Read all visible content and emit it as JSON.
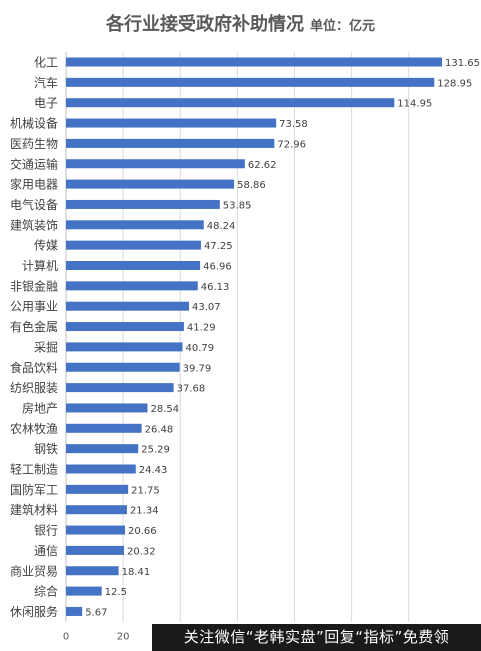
{
  "chart_data": {
    "type": "bar",
    "orientation": "horizontal",
    "title": "各行业接受政府补助情况",
    "unit_label": "单位：亿元",
    "categories": [
      "化工",
      "汽车",
      "电子",
      "机械设备",
      "医药生物",
      "交通运输",
      "家用电器",
      "电气设备",
      "建筑装饰",
      "传媒",
      "计算机",
      "非银金融",
      "公用事业",
      "有色金属",
      "采掘",
      "食品饮料",
      "纺织服装",
      "房地产",
      "农林牧渔",
      "钢铁",
      "轻工制造",
      "国防军工",
      "建筑材料",
      "银行",
      "通信",
      "商业贸易",
      "综合",
      "休闲服务"
    ],
    "values": [
      131.65,
      128.95,
      114.95,
      73.58,
      72.96,
      62.62,
      58.86,
      53.85,
      48.24,
      47.25,
      46.96,
      46.13,
      43.07,
      41.29,
      40.79,
      39.79,
      37.68,
      28.54,
      26.48,
      25.29,
      24.43,
      21.75,
      21.34,
      20.66,
      20.32,
      18.41,
      12.5,
      5.67
    ],
    "value_labels": [
      "131.65",
      "128.95",
      "114.95",
      "73.58",
      "72.96",
      "62.62",
      "58.86",
      "53.85",
      "48.24",
      "47.25",
      "46.96",
      "46.13",
      "43.07",
      "41.29",
      "40.79",
      "39.79",
      "37.68",
      "28.54",
      "26.48",
      "25.29",
      "24.43",
      "21.75",
      "21.34",
      "20.66",
      "20.32",
      "18.41",
      "12.5",
      "5.67"
    ],
    "x_ticks": [
      "0",
      "20"
    ],
    "xlim": [
      0,
      131.65
    ],
    "bar_color": "#4472C4",
    "grid": true,
    "legend": "none"
  },
  "watermark": "关注微信“老韩实盘”回复“指标”免费领"
}
